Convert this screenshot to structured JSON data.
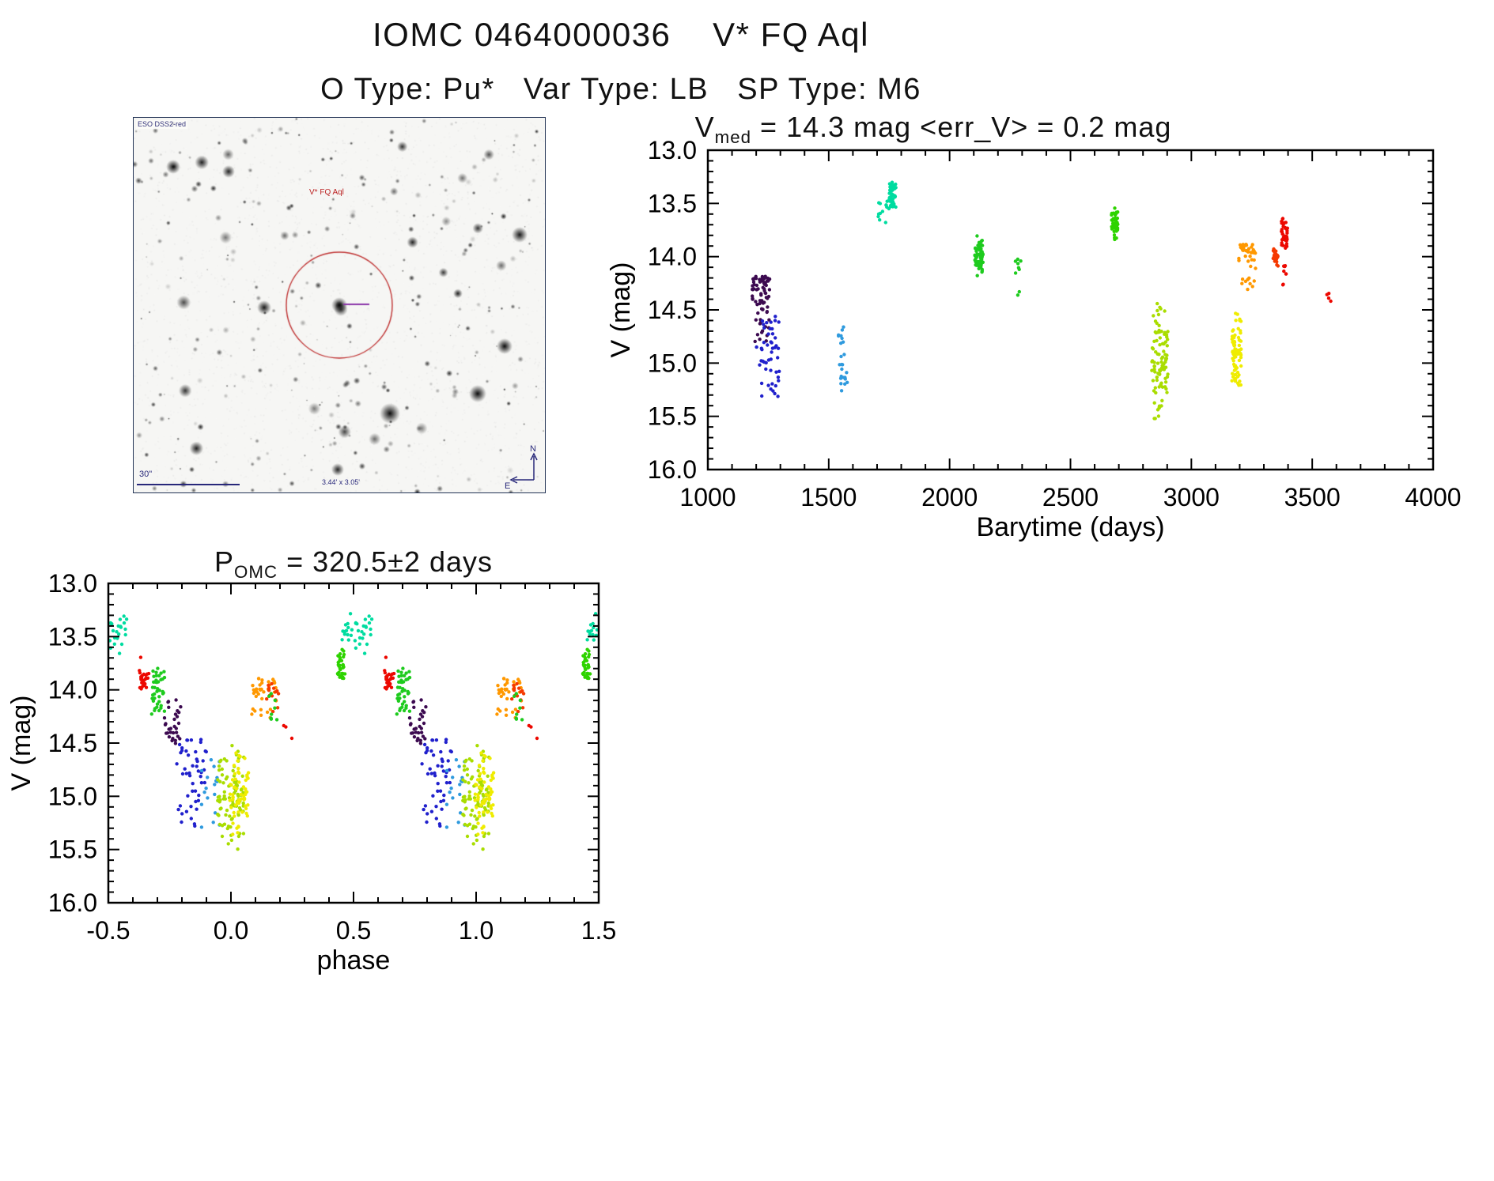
{
  "page": {
    "title": "IOMC 0464000036    V* FQ Aql",
    "subtitle": "O Type: Pu*   Var Type: LB   SP Type: M6"
  },
  "finding_chart": {
    "survey_label": "ESO DSS2-red",
    "star_label": "V* FQ Aql",
    "scale_bar_label": "30\"",
    "fov_label": "3.44' x 3.05'",
    "compass_north": "N",
    "compass_east": "E",
    "circle_color": "#c03333",
    "marker_color": "#8a35a8"
  },
  "chart_data": [
    {
      "id": "barytime-lightcurve",
      "type": "scatter",
      "title": {
        "main": "V",
        "sub": "med",
        "rest": " = 14.3 mag <err_V> = 0.2 mag"
      },
      "xlabel": "Barytime (days)",
      "ylabel": "V (mag)",
      "xlim": [
        1000,
        4000
      ],
      "ylim": [
        13.0,
        16.0
      ],
      "y_axis_inverted": true,
      "xticks": [
        1000,
        1500,
        2000,
        2500,
        3000,
        3500,
        4000
      ],
      "xtick_labels": [
        "1000",
        "1500",
        "2000",
        "2500",
        "3000",
        "3500",
        "4000"
      ],
      "yticks": [
        13.0,
        13.5,
        14.0,
        14.5,
        15.0,
        15.5,
        16.0
      ],
      "ytick_labels": [
        "13.0",
        "13.5",
        "14.0",
        "14.5",
        "15.0",
        "15.5",
        "16.0"
      ],
      "x_minor": 100,
      "y_minor": 0.1,
      "legend": "none",
      "grid": false,
      "clusters": [
        {
          "color": "#3c0a50",
          "x": [
            1183,
            1256
          ],
          "y": [
            14.18,
            15.12
          ],
          "n": 78,
          "bias": "top"
        },
        {
          "color": "#2020cc",
          "x": [
            1200,
            1298
          ],
          "y": [
            14.55,
            15.32
          ],
          "n": 48,
          "bias": "uniform"
        },
        {
          "color": "#2f9ade",
          "x": [
            1538,
            1578
          ],
          "y": [
            14.62,
            15.26
          ],
          "n": 24,
          "bias": "uniform"
        },
        {
          "color": "#00dca0",
          "x": [
            1698,
            1745
          ],
          "y": [
            13.45,
            13.68
          ],
          "n": 12,
          "bias": "uniform"
        },
        {
          "color": "#00dca0",
          "x": [
            1748,
            1778
          ],
          "y": [
            13.28,
            13.58
          ],
          "n": 40,
          "bias": "mid"
        },
        {
          "color": "#1ecb1e",
          "x": [
            2102,
            2138
          ],
          "y": [
            13.78,
            14.22
          ],
          "n": 60,
          "bias": "mid"
        },
        {
          "color": "#1ecb1e",
          "x": [
            2268,
            2295
          ],
          "y": [
            14.02,
            14.16
          ],
          "n": 7,
          "bias": "uniform"
        },
        {
          "color": "#1ecb1e",
          "x": [
            2282,
            2292
          ],
          "y": [
            14.32,
            14.38
          ],
          "n": 2,
          "bias": "uniform"
        },
        {
          "color": "#2ed300",
          "x": [
            2668,
            2696
          ],
          "y": [
            13.53,
            13.9
          ],
          "n": 40,
          "bias": "mid"
        },
        {
          "color": "#a9dd00",
          "x": [
            2836,
            2906
          ],
          "y": [
            14.38,
            15.58
          ],
          "n": 95,
          "bias": "mid"
        },
        {
          "color": "#efec00",
          "x": [
            3168,
            3206
          ],
          "y": [
            14.38,
            15.42
          ],
          "n": 75,
          "bias": "mid"
        },
        {
          "color": "#ff9800",
          "x": [
            3196,
            3266
          ],
          "y": [
            13.88,
            14.56
          ],
          "n": 45,
          "bias": "top"
        },
        {
          "color": "#f53800",
          "x": [
            3338,
            3362
          ],
          "y": [
            13.86,
            14.12
          ],
          "n": 22,
          "bias": "mid"
        },
        {
          "color": "#ec0800",
          "x": [
            3372,
            3398
          ],
          "y": [
            13.62,
            13.95
          ],
          "n": 42,
          "bias": "mid"
        },
        {
          "color": "#ec0800",
          "x": [
            3374,
            3396
          ],
          "y": [
            14.05,
            14.3
          ],
          "n": 9,
          "bias": "uniform"
        },
        {
          "color": "#ec0800",
          "x": [
            3558,
            3582
          ],
          "y": [
            14.32,
            14.58
          ],
          "n": 4,
          "bias": "uniform"
        }
      ]
    },
    {
      "id": "phase-folded",
      "type": "scatter",
      "title": {
        "main": "P",
        "sub": "OMC",
        "rest": " = 320.5±2 days"
      },
      "xlabel": "phase",
      "ylabel": "V (mag)",
      "xlim": [
        -0.5,
        1.5
      ],
      "ylim": [
        13.0,
        16.0
      ],
      "y_axis_inverted": true,
      "xticks": [
        -0.5,
        0.0,
        0.5,
        1.0,
        1.5
      ],
      "xtick_labels": [
        "-0.5",
        "0.0",
        "0.5",
        "1.0",
        "1.5"
      ],
      "yticks": [
        13.0,
        13.5,
        14.0,
        14.5,
        15.0,
        15.5,
        16.0
      ],
      "ytick_labels": [
        "13.0",
        "13.5",
        "14.0",
        "14.5",
        "15.0",
        "15.5",
        "16.0"
      ],
      "x_minor": 0.1,
      "y_minor": 0.1,
      "legend": "none",
      "grid": false,
      "duplicate_offset": 1.0,
      "clusters": [
        {
          "color": "#00dca0",
          "x": [
            -0.5,
            -0.425
          ],
          "y": [
            13.3,
            13.66
          ],
          "n": 22,
          "bias": "uniform"
        },
        {
          "color": "#00dca0",
          "x": [
            0.44,
            0.499
          ],
          "y": [
            13.28,
            13.58
          ],
          "n": 14,
          "bias": "uniform"
        },
        {
          "color": "#2ed300",
          "x": [
            0.435,
            0.465
          ],
          "y": [
            13.58,
            13.92
          ],
          "n": 32,
          "bias": "mid"
        },
        {
          "color": "#ec0800",
          "x": [
            -0.375,
            -0.335
          ],
          "y": [
            13.68,
            14.08
          ],
          "n": 26,
          "bias": "mid"
        },
        {
          "color": "#1ecb1e",
          "x": [
            -0.325,
            -0.27
          ],
          "y": [
            13.76,
            14.28
          ],
          "n": 40,
          "bias": "mid"
        },
        {
          "color": "#3c0a50",
          "x": [
            -0.275,
            -0.205
          ],
          "y": [
            14.05,
            14.55
          ],
          "n": 30,
          "bias": "uniform"
        },
        {
          "color": "#2020cc",
          "x": [
            -0.225,
            -0.1
          ],
          "y": [
            14.45,
            15.28
          ],
          "n": 48,
          "bias": "uniform"
        },
        {
          "color": "#2f9ade",
          "x": [
            -0.12,
            -0.04
          ],
          "y": [
            14.6,
            15.3
          ],
          "n": 18,
          "bias": "uniform"
        },
        {
          "color": "#a9dd00",
          "x": [
            -0.055,
            0.055
          ],
          "y": [
            14.48,
            15.6
          ],
          "n": 90,
          "bias": "mid"
        },
        {
          "color": "#efec00",
          "x": [
            -0.005,
            0.075
          ],
          "y": [
            14.55,
            15.4
          ],
          "n": 60,
          "bias": "mid"
        },
        {
          "color": "#ff9800",
          "x": [
            0.085,
            0.185
          ],
          "y": [
            13.88,
            14.52
          ],
          "n": 35,
          "bias": "top"
        },
        {
          "color": "#f53800",
          "x": [
            0.145,
            0.195
          ],
          "y": [
            13.88,
            14.28
          ],
          "n": 14,
          "bias": "mid"
        },
        {
          "color": "#1ecb1e",
          "x": [
            0.155,
            0.19
          ],
          "y": [
            13.95,
            14.35
          ],
          "n": 8,
          "bias": "uniform"
        },
        {
          "color": "#ec0800",
          "x": [
            0.215,
            0.25
          ],
          "y": [
            14.32,
            14.56
          ],
          "n": 3,
          "bias": "uniform"
        }
      ]
    }
  ]
}
